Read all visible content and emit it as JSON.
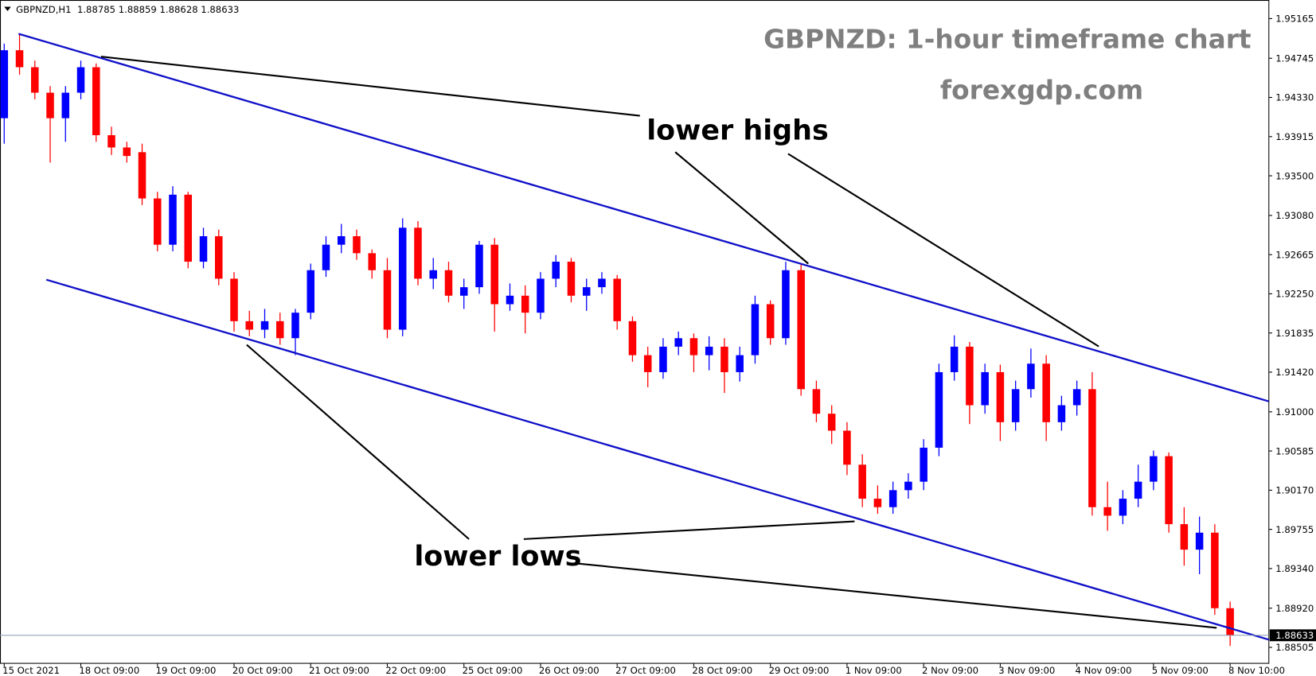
{
  "chart_data": {
    "type": "candlestick",
    "header": "GBPNZD,H1  1.88785 1.88859 1.88628 1.88633",
    "title": "GBPNZD: 1-hour timeframe chart",
    "subtitle": "forexgdp.com",
    "annotations": [
      "lower highs",
      "lower lows"
    ],
    "bull_color": "#0000ff",
    "bear_color": "#ff0000",
    "last_price": 1.88633,
    "ylim": [
      1.88336,
      1.95362
    ],
    "yticks": [
      1.95165,
      1.94745,
      {
        "value": 1.9433,
        "label": "1.94330"
      },
      1.93915,
      {
        "value": 1.935,
        "label": "1.93500"
      },
      {
        "value": 1.9308,
        "label": "1.93080"
      },
      1.92665,
      {
        "value": 1.9225,
        "label": "1.92250"
      },
      1.91835,
      {
        "value": 1.9142,
        "label": "1.91420"
      },
      {
        "value": 1.91,
        "label": "1.91000"
      },
      1.90585,
      {
        "value": 1.9017,
        "label": "1.90170"
      },
      1.89755,
      {
        "value": 1.8934,
        "label": "1.89340"
      },
      {
        "value": 1.8892,
        "label": "1.88920"
      },
      1.88505
    ],
    "categories": [
      "15 Oct 2021",
      null,
      null,
      null,
      null,
      "18 Oct 09:00",
      null,
      null,
      null,
      null,
      "19 Oct 09:00",
      null,
      null,
      null,
      null,
      "20 Oct 09:00",
      null,
      null,
      null,
      null,
      "21 Oct 09:00",
      null,
      null,
      null,
      null,
      "22 Oct 09:00",
      null,
      null,
      null,
      null,
      "25 Oct 09:00",
      null,
      null,
      null,
      null,
      "26 Oct 09:00",
      null,
      null,
      null,
      null,
      "27 Oct 09:00",
      null,
      null,
      null,
      null,
      "28 Oct 09:00",
      null,
      null,
      null,
      null,
      "29 Oct 09:00",
      null,
      null,
      null,
      null,
      "1 Nov 09:00",
      null,
      null,
      null,
      null,
      "2 Nov 09:00",
      null,
      null,
      null,
      null,
      "3 Nov 09:00",
      null,
      null,
      null,
      null,
      "4 Nov 09:00",
      null,
      null,
      null,
      null,
      "5 Nov 09:00",
      null,
      null,
      null,
      null,
      "8 Nov 10:00"
    ],
    "open": [
      1.9411,
      1.9483,
      1.9465,
      1.9438,
      1.9411,
      1.9438,
      1.9465,
      1.9393,
      1.938,
      1.9375,
      1.9326,
      1.9277,
      1.933,
      1.9259,
      1.9286,
      1.9241,
      1.9196,
      1.9187,
      1.9196,
      1.9178,
      1.9205,
      1.925,
      1.9277,
      1.9286,
      1.9268,
      1.925,
      1.9187,
      1.9295,
      1.9241,
      1.925,
      1.9223,
      1.9232,
      1.9277,
      1.9214,
      1.9223,
      1.9205,
      1.9241,
      1.9259,
      1.9223,
      1.9232,
      1.9241,
      1.9196,
      1.916,
      1.9142,
      1.9169,
      1.9178,
      1.916,
      1.9169,
      1.9142,
      1.916,
      1.9214,
      1.9178,
      1.925,
      1.9124,
      1.9098,
      1.908,
      1.9044,
      1.9008,
      1.8999,
      1.9017,
      1.9026,
      1.9062,
      1.9142,
      1.9169,
      1.9107,
      1.9142,
      1.9089,
      1.9124,
      1.9151,
      1.9089,
      1.9107,
      1.9124,
      1.8999,
      1.899,
      1.9008,
      1.9026,
      1.9053,
      1.8981,
      1.8954,
      1.8972,
      1.8892
    ],
    "high": [
      1.949,
      1.95,
      1.9472,
      1.9445,
      1.9445,
      1.9472,
      1.9469,
      1.9402,
      1.9386,
      1.9384,
      1.9333,
      1.9339,
      1.9333,
      1.9295,
      1.9293,
      1.9248,
      1.9207,
      1.9209,
      1.9205,
      1.9209,
      1.9257,
      1.9286,
      1.9299,
      1.9293,
      1.9272,
      1.9263,
      1.9305,
      1.9302,
      1.9263,
      1.9259,
      1.9241,
      1.9281,
      1.9284,
      1.9236,
      1.9234,
      1.9248,
      1.9266,
      1.9263,
      1.9241,
      1.9248,
      1.9245,
      1.9201,
      1.9169,
      1.9178,
      1.9185,
      1.9183,
      1.918,
      1.9178,
      1.9169,
      1.9223,
      1.9218,
      1.9259,
      1.9257,
      1.9133,
      1.9107,
      1.9089,
      1.9055,
      1.9022,
      1.9026,
      1.9035,
      1.9071,
      1.9151,
      1.9181,
      1.9174,
      1.9151,
      1.915,
      1.9133,
      1.9167,
      1.916,
      1.9117,
      1.9133,
      1.9142,
      1.9026,
      1.9017,
      1.9044,
      1.9059,
      1.9057,
      1.8999,
      1.8989,
      1.8981,
      1.8899
    ],
    "low": [
      1.9384,
      1.9457,
      1.9431,
      1.9364,
      1.9386,
      1.9431,
      1.9386,
      1.9372,
      1.9364,
      1.9319,
      1.927,
      1.927,
      1.9252,
      1.9252,
      1.9234,
      1.9185,
      1.918,
      1.9178,
      1.9171,
      1.916,
      1.9198,
      1.9243,
      1.9268,
      1.9261,
      1.9241,
      1.9178,
      1.918,
      1.9234,
      1.923,
      1.9216,
      1.9209,
      1.9225,
      1.9185,
      1.9207,
      1.9183,
      1.9198,
      1.9232,
      1.9216,
      1.9207,
      1.9225,
      1.9187,
      1.9153,
      1.9126,
      1.9135,
      1.916,
      1.9142,
      1.9144,
      1.912,
      1.9132,
      1.9151,
      1.9171,
      1.9171,
      1.9117,
      1.9089,
      1.9066,
      1.9033,
      1.8999,
      1.8992,
      1.8992,
      1.9008,
      1.9017,
      1.9053,
      1.9133,
      1.9087,
      1.9098,
      1.9069,
      1.908,
      1.9115,
      1.9069,
      1.908,
      1.9096,
      1.899,
      1.8974,
      1.8981,
      1.8999,
      1.9017,
      1.8972,
      1.8937,
      1.8928,
      1.8885,
      1.8852
    ],
    "close": [
      1.9483,
      1.9465,
      1.9438,
      1.9411,
      1.9438,
      1.9465,
      1.9393,
      1.938,
      1.9371,
      1.9326,
      1.9277,
      1.933,
      1.9259,
      1.9286,
      1.9241,
      1.9196,
      1.9187,
      1.9196,
      1.9178,
      1.9205,
      1.925,
      1.9277,
      1.9286,
      1.9268,
      1.925,
      1.9187,
      1.9295,
      1.9241,
      1.925,
      1.9223,
      1.9232,
      1.9277,
      1.9214,
      1.9223,
      1.9205,
      1.9241,
      1.9259,
      1.9223,
      1.9232,
      1.9241,
      1.9196,
      1.916,
      1.9142,
      1.9169,
      1.9178,
      1.916,
      1.9169,
      1.9142,
      1.916,
      1.9214,
      1.9178,
      1.925,
      1.9124,
      1.9098,
      1.908,
      1.9044,
      1.9008,
      1.8999,
      1.9017,
      1.9026,
      1.9062,
      1.9142,
      1.9169,
      1.9107,
      1.9142,
      1.9089,
      1.9124,
      1.9151,
      1.9089,
      1.9107,
      1.9124,
      1.8999,
      1.899,
      1.9008,
      1.9026,
      1.9053,
      1.8981,
      1.8954,
      1.8972,
      1.8892,
      1.8863
    ]
  }
}
